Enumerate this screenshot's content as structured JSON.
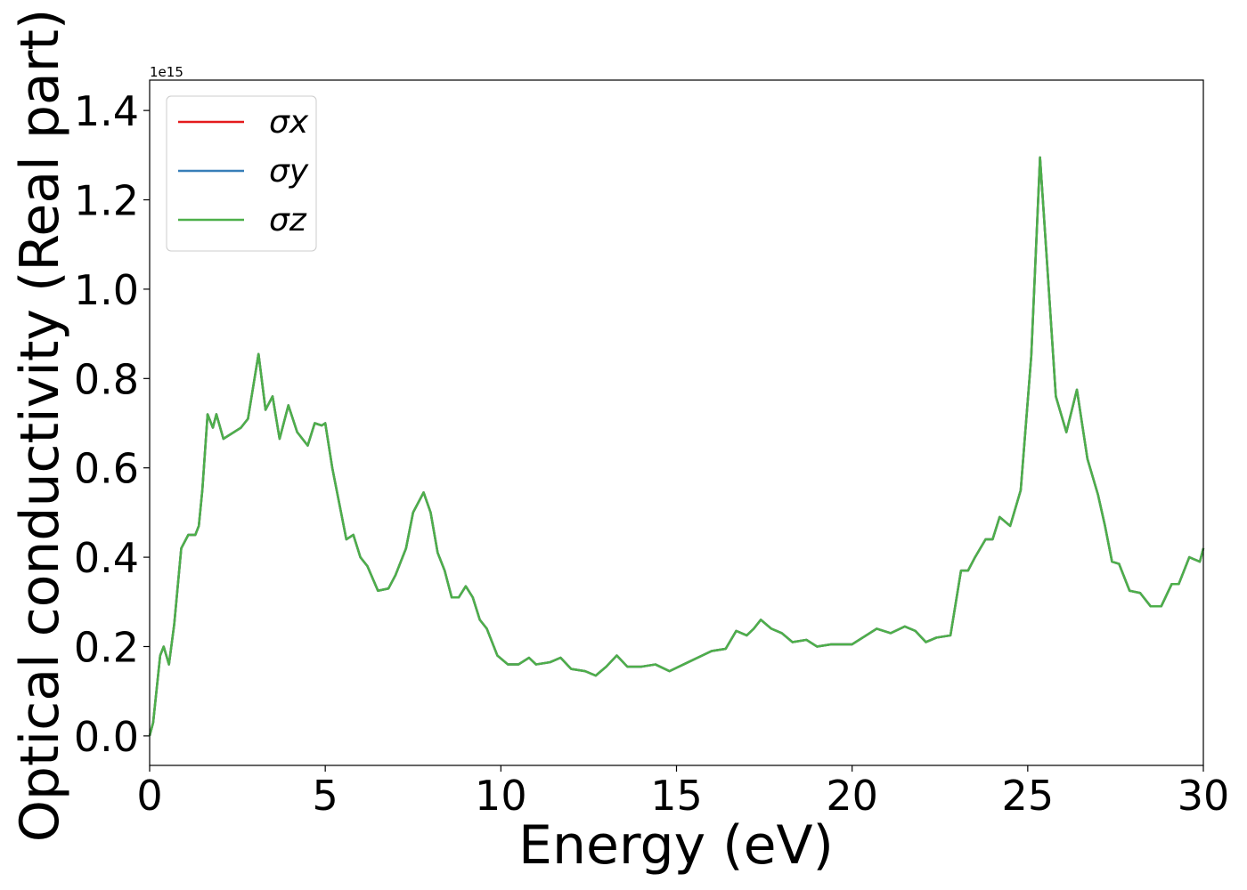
{
  "chart_data": {
    "type": "line",
    "xlabel": "Energy (eV)",
    "ylabel": "Optical conductivity (Real part)",
    "offset_label": "1e15",
    "xlim": [
      0,
      30
    ],
    "ylim": [
      -0.066,
      1.468
    ],
    "xticks": [
      0,
      5,
      10,
      15,
      20,
      25,
      30
    ],
    "yticks": [
      {
        "value": 0,
        "label": "0.0"
      },
      0.2,
      0.4,
      0.6,
      0.8,
      {
        "value": 1,
        "label": "1.0"
      },
      1.2,
      1.4
    ],
    "legend": "upper left",
    "x": [
      0,
      0.1,
      0.3,
      0.4,
      0.55,
      0.7,
      0.9,
      1.1,
      1.3,
      1.4,
      1.5,
      1.65,
      1.8,
      1.9,
      2.1,
      2.4,
      2.6,
      2.8,
      3.1,
      3.3,
      3.5,
      3.7,
      3.95,
      4.2,
      4.5,
      4.7,
      4.9,
      5.0,
      5.2,
      5.4,
      5.6,
      5.8,
      6.0,
      6.2,
      6.5,
      6.8,
      7.0,
      7.3,
      7.5,
      7.8,
      8.0,
      8.2,
      8.4,
      8.6,
      8.8,
      9.0,
      9.2,
      9.4,
      9.6,
      9.9,
      10.2,
      10.5,
      10.8,
      11.0,
      11.4,
      11.7,
      12.0,
      12.4,
      12.7,
      13.0,
      13.3,
      13.6,
      14.0,
      14.4,
      14.8,
      15.2,
      15.6,
      16.0,
      16.4,
      16.7,
      17.0,
      17.2,
      17.4,
      17.7,
      18.0,
      18.3,
      18.7,
      19.0,
      19.4,
      20.0,
      20.3,
      20.7,
      21.1,
      21.5,
      21.8,
      22.1,
      22.4,
      22.8,
      23.1,
      23.3,
      23.5,
      23.8,
      24.0,
      24.2,
      24.5,
      24.8,
      25.1,
      25.35,
      25.6,
      25.8,
      26.1,
      26.4,
      26.7,
      27.0,
      27.2,
      27.4,
      27.6,
      27.9,
      28.2,
      28.5,
      28.8,
      29.1,
      29.3,
      29.6,
      29.9,
      30.0
    ],
    "series": [
      {
        "name": "σx",
        "color": "#e41a1c",
        "values": [
          0,
          0.03,
          0.18,
          0.2,
          0.16,
          0.25,
          0.42,
          0.45,
          0.45,
          0.47,
          0.55,
          0.72,
          0.69,
          0.72,
          0.665,
          0.68,
          0.69,
          0.71,
          0.855,
          0.73,
          0.76,
          0.665,
          0.74,
          0.68,
          0.65,
          0.7,
          0.695,
          0.7,
          0.6,
          0.52,
          0.44,
          0.45,
          0.4,
          0.38,
          0.325,
          0.33,
          0.36,
          0.42,
          0.5,
          0.545,
          0.5,
          0.41,
          0.37,
          0.31,
          0.31,
          0.335,
          0.31,
          0.26,
          0.24,
          0.18,
          0.16,
          0.16,
          0.175,
          0.16,
          0.165,
          0.175,
          0.15,
          0.145,
          0.135,
          0.155,
          0.18,
          0.155,
          0.155,
          0.16,
          0.145,
          0.16,
          0.175,
          0.19,
          0.195,
          0.235,
          0.225,
          0.24,
          0.26,
          0.24,
          0.23,
          0.21,
          0.215,
          0.2,
          0.205,
          0.205,
          0.22,
          0.24,
          0.23,
          0.245,
          0.235,
          0.21,
          0.22,
          0.225,
          0.37,
          0.37,
          0.4,
          0.44,
          0.44,
          0.49,
          0.47,
          0.55,
          0.85,
          1.295,
          1.0,
          0.76,
          0.68,
          0.775,
          0.62,
          0.54,
          0.47,
          0.39,
          0.385,
          0.325,
          0.32,
          0.29,
          0.29,
          0.34,
          0.34,
          0.4,
          0.39,
          0.42
        ]
      },
      {
        "name": "σy",
        "color": "#377eb8",
        "values": [
          0,
          0.03,
          0.18,
          0.2,
          0.16,
          0.25,
          0.42,
          0.45,
          0.45,
          0.47,
          0.55,
          0.72,
          0.69,
          0.72,
          0.665,
          0.68,
          0.69,
          0.71,
          0.855,
          0.73,
          0.76,
          0.665,
          0.74,
          0.68,
          0.65,
          0.7,
          0.695,
          0.7,
          0.6,
          0.52,
          0.44,
          0.45,
          0.4,
          0.38,
          0.325,
          0.33,
          0.36,
          0.42,
          0.5,
          0.545,
          0.5,
          0.41,
          0.37,
          0.31,
          0.31,
          0.335,
          0.31,
          0.26,
          0.24,
          0.18,
          0.16,
          0.16,
          0.175,
          0.16,
          0.165,
          0.175,
          0.15,
          0.145,
          0.135,
          0.155,
          0.18,
          0.155,
          0.155,
          0.16,
          0.145,
          0.16,
          0.175,
          0.19,
          0.195,
          0.235,
          0.225,
          0.24,
          0.26,
          0.24,
          0.23,
          0.21,
          0.215,
          0.2,
          0.205,
          0.205,
          0.22,
          0.24,
          0.23,
          0.245,
          0.235,
          0.21,
          0.22,
          0.225,
          0.37,
          0.37,
          0.4,
          0.44,
          0.44,
          0.49,
          0.47,
          0.55,
          0.85,
          1.295,
          1.0,
          0.76,
          0.68,
          0.775,
          0.62,
          0.54,
          0.47,
          0.39,
          0.385,
          0.325,
          0.32,
          0.29,
          0.29,
          0.34,
          0.34,
          0.4,
          0.39,
          0.42
        ]
      },
      {
        "name": "σz",
        "color": "#4daf4a",
        "values": [
          0,
          0.03,
          0.18,
          0.2,
          0.16,
          0.25,
          0.42,
          0.45,
          0.45,
          0.47,
          0.55,
          0.72,
          0.69,
          0.72,
          0.665,
          0.68,
          0.69,
          0.71,
          0.855,
          0.73,
          0.76,
          0.665,
          0.74,
          0.68,
          0.65,
          0.7,
          0.695,
          0.7,
          0.6,
          0.52,
          0.44,
          0.45,
          0.4,
          0.38,
          0.325,
          0.33,
          0.36,
          0.42,
          0.5,
          0.545,
          0.5,
          0.41,
          0.37,
          0.31,
          0.31,
          0.335,
          0.31,
          0.26,
          0.24,
          0.18,
          0.16,
          0.16,
          0.175,
          0.16,
          0.165,
          0.175,
          0.15,
          0.145,
          0.135,
          0.155,
          0.18,
          0.155,
          0.155,
          0.16,
          0.145,
          0.16,
          0.175,
          0.19,
          0.195,
          0.235,
          0.225,
          0.24,
          0.26,
          0.24,
          0.23,
          0.21,
          0.215,
          0.2,
          0.205,
          0.205,
          0.22,
          0.24,
          0.23,
          0.245,
          0.235,
          0.21,
          0.22,
          0.225,
          0.37,
          0.37,
          0.4,
          0.44,
          0.44,
          0.49,
          0.47,
          0.55,
          0.85,
          1.295,
          1.0,
          0.76,
          0.68,
          0.775,
          0.62,
          0.54,
          0.47,
          0.39,
          0.385,
          0.325,
          0.32,
          0.29,
          0.29,
          0.34,
          0.34,
          0.4,
          0.39,
          0.42
        ]
      }
    ]
  }
}
